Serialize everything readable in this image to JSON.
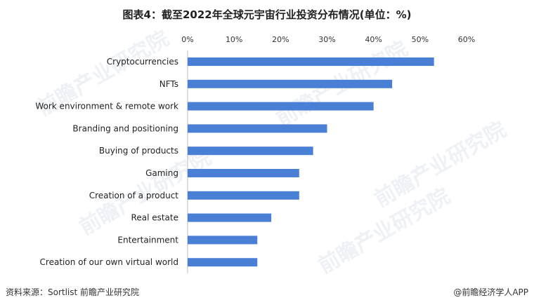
{
  "title": "图表4：截至2022年全球元宇宙行业投资分布情况(单位：%)",
  "source": "资料来源：Sortlist 前瞻产业研究院",
  "brand": "@前瞻经济学人APP",
  "watermark": "前瞻产业研究院",
  "colors": {
    "bar": "#4a7fd6",
    "grid": "#d9d9d9",
    "axis": "#bfbfbf"
  },
  "chart_data": {
    "type": "bar",
    "orientation": "horizontal",
    "categories": [
      "Cryptocurrencies",
      "NFTs",
      "Work environment & remote work",
      "Branding and positioning",
      "Buying of products",
      "Gaming",
      "Creation of a product",
      "Real estate",
      "Entertainment",
      "Creation of our own virtual world"
    ],
    "values": [
      53,
      44,
      40,
      30,
      27,
      24,
      24,
      18,
      15,
      15
    ],
    "xlim": [
      0,
      60
    ],
    "xticks": [
      "0%",
      "10%",
      "20%",
      "30%",
      "40%",
      "50%",
      "60%"
    ],
    "xaxis_position": "top",
    "grid": false,
    "legend": "none"
  }
}
